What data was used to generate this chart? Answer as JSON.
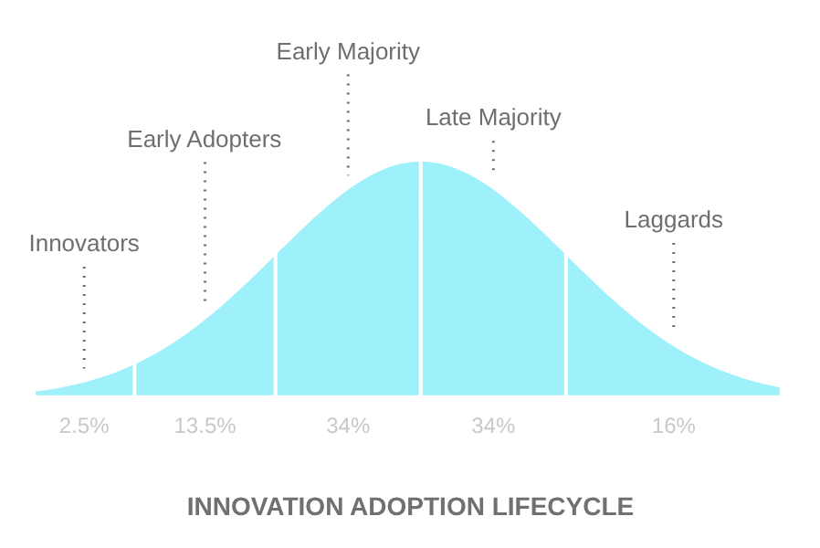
{
  "chart_data": {
    "type": "other",
    "title": "INNOVATION ADOPTION LIFECYCLE",
    "categories": [
      "Innovators",
      "Early Adopters",
      "Early Majority",
      "Late Majority",
      "Laggards"
    ],
    "values": [
      2.5,
      13.5,
      34,
      34,
      16
    ],
    "value_labels": [
      "2.5%",
      "13.5%",
      "34%",
      "34%",
      "16%"
    ],
    "colors": [
      "#9ef0fa",
      "#9ef0fa",
      "#9ef0fa",
      "#9ef0fa",
      "#9ef0fa"
    ]
  }
}
